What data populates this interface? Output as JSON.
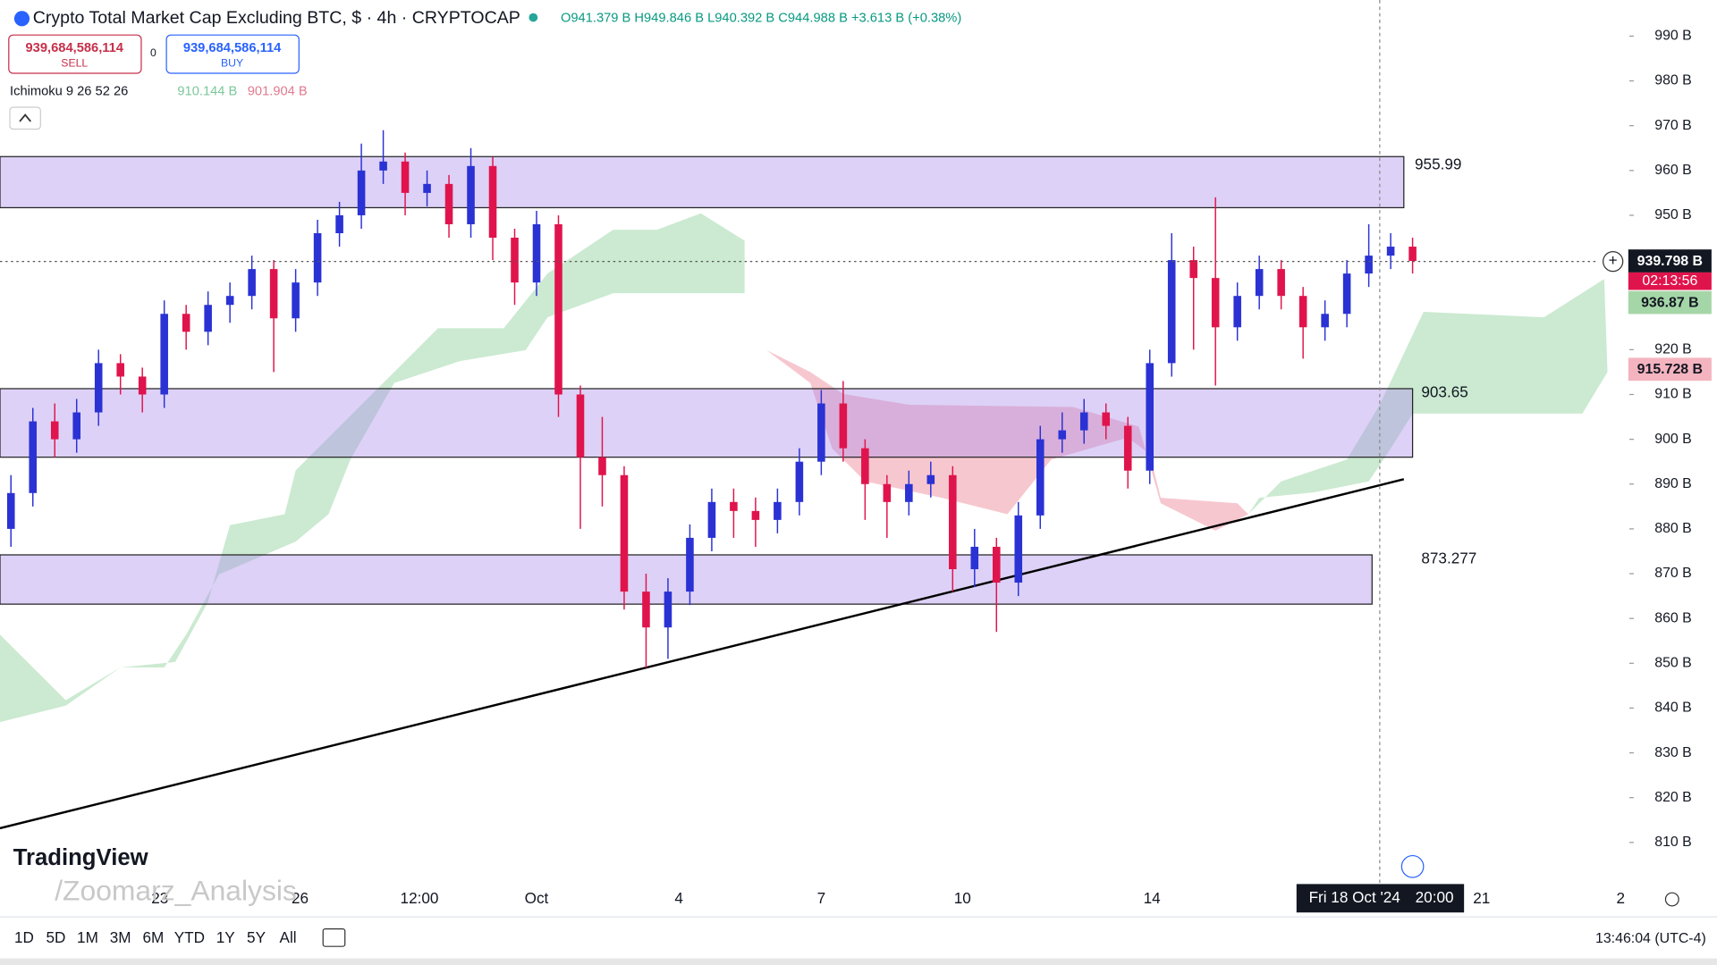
{
  "header": {
    "symbol": "Crypto Total Market Cap Excluding BTC, $ · 4h · CRYPTOCAP",
    "ohlc": "O941.379 B H949.846 B L940.392 B C944.988 B +3.613 B (+0.38%)",
    "sell_price": "939,684,586,114",
    "sell": "SELL",
    "spread": "0",
    "buy_price": "939,684,586,114",
    "buy": "BUY",
    "indicator": "Ichimoku 9 26 52 26",
    "indicator_v1": "910.144 B",
    "indicator_v2": "901.904 B"
  },
  "chart": {
    "ylim": [
      810,
      990
    ],
    "up_color": "#2a32d4",
    "down_color": "#e0144c",
    "price_ticks": [
      {
        "value": 990,
        "label": "990 B"
      },
      {
        "value": 980,
        "label": "980 B"
      },
      {
        "value": 970,
        "label": "970 B"
      },
      {
        "value": 960,
        "label": "960 B"
      },
      {
        "value": 950,
        "label": "950 B"
      },
      {
        "value": 920,
        "label": "920 B"
      },
      {
        "value": 910,
        "label": "910 B"
      },
      {
        "value": 900,
        "label": "900 B"
      },
      {
        "value": 890,
        "label": "890 B"
      },
      {
        "value": 880,
        "label": "880 B"
      },
      {
        "value": 870,
        "label": "870 B"
      },
      {
        "value": 860,
        "label": "860 B"
      },
      {
        "value": 850,
        "label": "850 B"
      },
      {
        "value": 840,
        "label": "840 B"
      },
      {
        "value": 830,
        "label": "830 B"
      },
      {
        "value": 820,
        "label": "820 B"
      },
      {
        "value": 810,
        "label": "810 B"
      }
    ],
    "time_labels": [
      "23",
      "26",
      "12:00",
      "Oct",
      "4",
      "7",
      "10",
      "14",
      "21",
      "2"
    ],
    "zones": [
      {
        "top": 963.1,
        "bottom": 951.7,
        "label": "955.99"
      },
      {
        "top": 911.3,
        "bottom": 896,
        "label": "903.65"
      },
      {
        "top": 874.2,
        "bottom": 863.2,
        "label": "873.277"
      }
    ],
    "candles": [
      [
        880,
        892,
        876,
        888
      ],
      [
        888,
        907,
        885,
        904
      ],
      [
        904,
        908,
        896,
        900
      ],
      [
        900,
        909,
        897,
        906
      ],
      [
        906,
        920,
        903,
        917
      ],
      [
        917,
        919,
        910,
        914
      ],
      [
        914,
        916,
        906,
        910
      ],
      [
        910,
        931,
        907,
        928
      ],
      [
        928,
        930,
        920,
        924
      ],
      [
        924,
        933,
        921,
        930
      ],
      [
        930,
        935,
        926,
        932
      ],
      [
        932,
        941,
        929,
        938
      ],
      [
        938,
        940,
        915,
        927
      ],
      [
        927,
        938,
        924,
        935
      ],
      [
        935,
        949,
        932,
        946
      ],
      [
        946,
        953,
        943,
        950
      ],
      [
        950,
        966,
        947,
        960
      ],
      [
        960,
        969,
        957,
        962
      ],
      [
        962,
        964,
        950,
        955
      ],
      [
        955,
        960,
        952,
        957
      ],
      [
        957,
        959,
        945,
        948
      ],
      [
        948,
        965,
        945,
        961
      ],
      [
        961,
        963,
        940,
        945
      ],
      [
        945,
        947,
        930,
        935
      ],
      [
        935,
        951,
        932,
        948
      ],
      [
        948,
        950,
        905,
        910
      ],
      [
        910,
        912,
        880,
        896
      ],
      [
        896,
        905,
        885,
        892
      ],
      [
        892,
        894,
        862,
        866
      ],
      [
        866,
        870,
        849,
        858
      ],
      [
        858,
        869,
        851,
        866
      ],
      [
        866,
        881,
        863,
        878
      ],
      [
        878,
        889,
        875,
        886
      ],
      [
        886,
        889,
        878,
        884
      ],
      [
        884,
        887,
        876,
        882
      ],
      [
        882,
        889,
        879,
        886
      ],
      [
        886,
        898,
        883,
        895
      ],
      [
        895,
        911,
        892,
        908
      ],
      [
        908,
        913,
        895,
        898
      ],
      [
        898,
        900,
        882,
        890
      ],
      [
        890,
        892,
        878,
        886
      ],
      [
        886,
        893,
        883,
        890
      ],
      [
        890,
        895,
        887,
        892
      ],
      [
        892,
        894,
        866,
        871
      ],
      [
        871,
        880,
        867,
        876
      ],
      [
        876,
        878,
        857,
        868
      ],
      [
        868,
        886,
        865,
        883
      ],
      [
        883,
        903,
        880,
        900
      ],
      [
        900,
        906,
        897,
        902
      ],
      [
        902,
        909,
        899,
        906
      ],
      [
        906,
        908,
        900,
        903
      ],
      [
        903,
        905,
        889,
        893
      ],
      [
        893,
        920,
        890,
        917
      ],
      [
        917,
        946,
        914,
        940
      ],
      [
        940,
        943,
        920,
        936
      ],
      [
        936,
        954,
        912,
        925
      ],
      [
        925,
        935,
        922,
        932
      ],
      [
        932,
        941,
        929,
        938
      ],
      [
        938,
        940,
        929,
        932
      ],
      [
        932,
        934,
        918,
        925
      ],
      [
        925,
        931,
        922,
        928
      ],
      [
        928,
        940,
        925,
        937
      ],
      [
        937,
        948,
        934,
        941
      ],
      [
        941,
        946,
        938,
        943
      ],
      [
        943,
        945,
        937,
        939.8
      ]
    ]
  },
  "price_tags": {
    "last": "939.798 B",
    "countdown": "02:13:56",
    "span_a": "936.87 B",
    "span_b": "915.728 B"
  },
  "crosshair": {
    "date": "Fri 18 Oct '24",
    "time": "20:00"
  },
  "watermark": {
    "brand": "TradingView",
    "author": "/Zoomarz_Analysis"
  },
  "footer": {
    "ranges": [
      "1D",
      "5D",
      "1M",
      "3M",
      "6M",
      "YTD",
      "1Y",
      "5Y",
      "All"
    ],
    "clock": "13:46:04 (UTC-4)"
  }
}
